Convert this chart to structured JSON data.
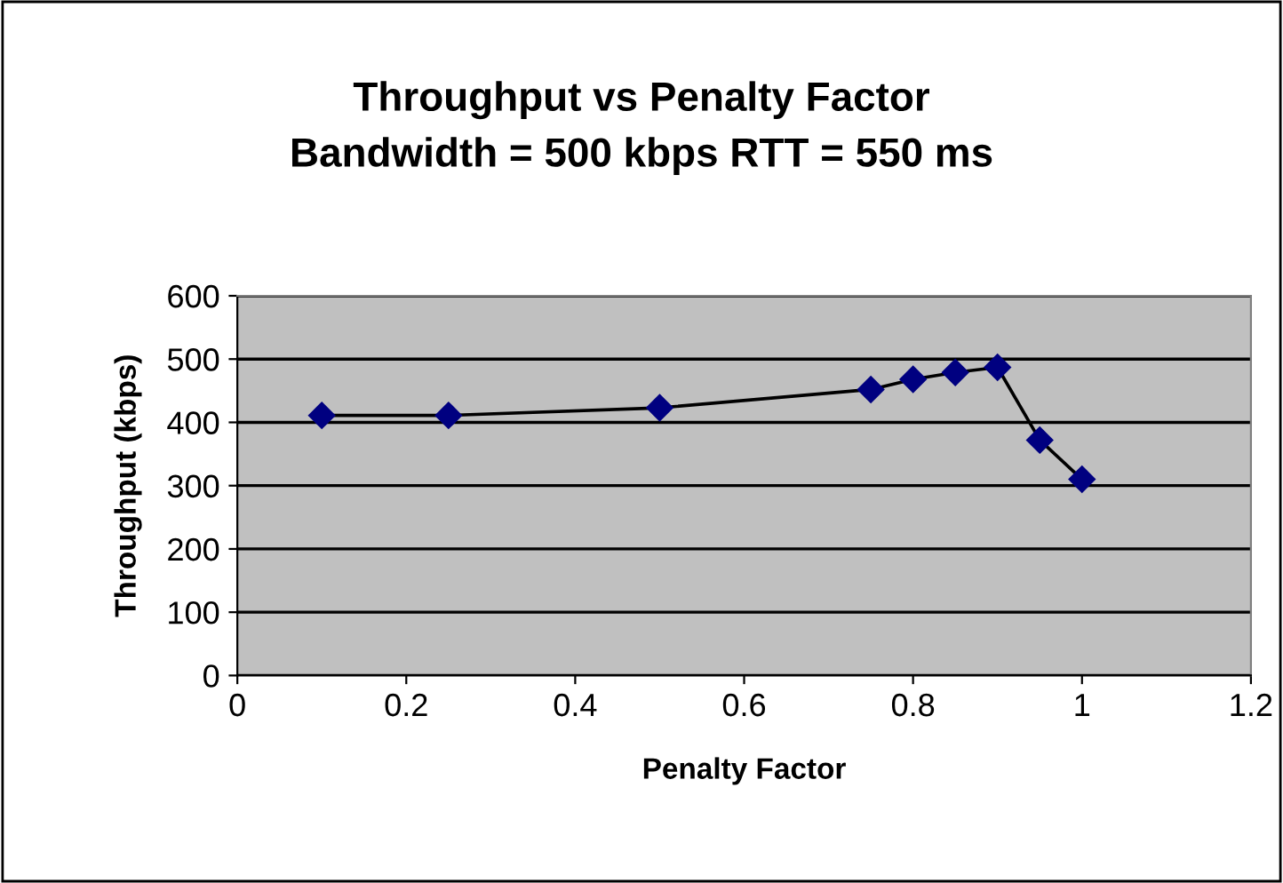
{
  "chart_data": {
    "type": "line",
    "title": "Throughput vs Penalty Factor\nBandwidth = 500 kbps RTT = 550 ms",
    "xlabel": "Penalty Factor",
    "ylabel": "Throughput (kbps)",
    "x": [
      0.1,
      0.25,
      0.5,
      0.75,
      0.8,
      0.85,
      0.9,
      0.95,
      1.0
    ],
    "series": [
      {
        "color": "#000080",
        "values": [
          411,
          411,
          423,
          452,
          468,
          479,
          487,
          372,
          310
        ]
      }
    ],
    "xlim": [
      0,
      1.2
    ],
    "xticks": [
      0,
      0.2,
      0.4,
      0.6,
      0.8,
      1,
      1.2
    ],
    "ylim": [
      0,
      600
    ],
    "yticks": [
      0,
      100,
      200,
      300,
      400,
      500,
      600
    ],
    "grid": "y",
    "marker": "diamond",
    "line_style": "solid"
  }
}
